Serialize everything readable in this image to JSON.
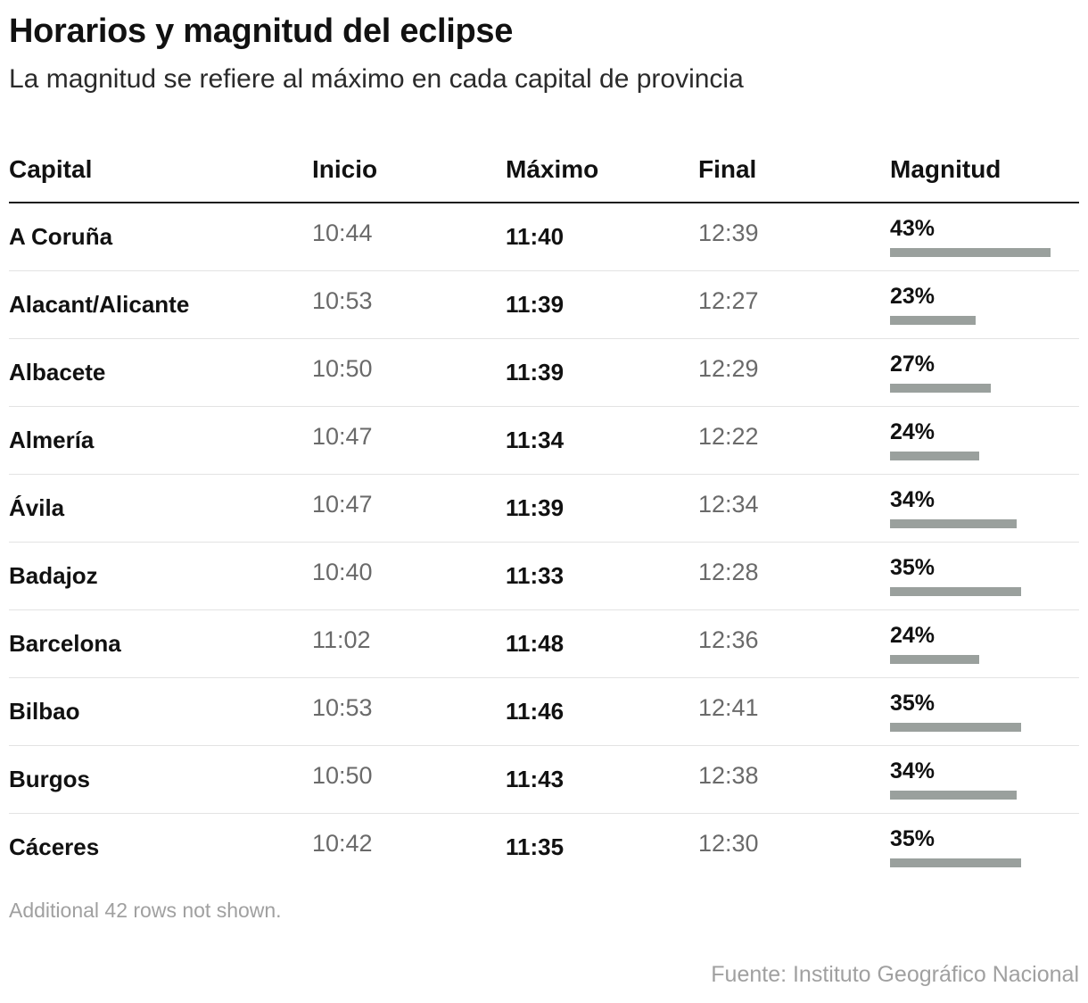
{
  "title": "Horarios y magnitud del eclipse",
  "subtitle": "La magnitud se refiere al máximo en cada capital de provincia",
  "footnote": "Additional 42 rows not shown.",
  "source": "Fuente: Instituto Geográfico Nacional",
  "colors": {
    "bar": "#9aa09d",
    "header_rule": "#1a1a1a",
    "muted_text": "#6a6a6a"
  },
  "chart_data": {
    "type": "table",
    "columns": [
      "Capital",
      "Inicio",
      "Máximo",
      "Final",
      "Magnitud"
    ],
    "magnitude_scale_max_percent": 43,
    "rows": [
      {
        "capital": "A Coruña",
        "inicio": "10:44",
        "maximo": "11:40",
        "final": "12:39",
        "magnitud": "43%",
        "magnitud_value": 43
      },
      {
        "capital": "Alacant/Alicante",
        "inicio": "10:53",
        "maximo": "11:39",
        "final": "12:27",
        "magnitud": "23%",
        "magnitud_value": 23
      },
      {
        "capital": "Albacete",
        "inicio": "10:50",
        "maximo": "11:39",
        "final": "12:29",
        "magnitud": "27%",
        "magnitud_value": 27
      },
      {
        "capital": "Almería",
        "inicio": "10:47",
        "maximo": "11:34",
        "final": "12:22",
        "magnitud": "24%",
        "magnitud_value": 24
      },
      {
        "capital": "Ávila",
        "inicio": "10:47",
        "maximo": "11:39",
        "final": "12:34",
        "magnitud": "34%",
        "magnitud_value": 34
      },
      {
        "capital": "Badajoz",
        "inicio": "10:40",
        "maximo": "11:33",
        "final": "12:28",
        "magnitud": "35%",
        "magnitud_value": 35
      },
      {
        "capital": "Barcelona",
        "inicio": "11:02",
        "maximo": "11:48",
        "final": "12:36",
        "magnitud": "24%",
        "magnitud_value": 24
      },
      {
        "capital": "Bilbao",
        "inicio": "10:53",
        "maximo": "11:46",
        "final": "12:41",
        "magnitud": "35%",
        "magnitud_value": 35
      },
      {
        "capital": "Burgos",
        "inicio": "10:50",
        "maximo": "11:43",
        "final": "12:38",
        "magnitud": "34%",
        "magnitud_value": 34
      },
      {
        "capital": "Cáceres",
        "inicio": "10:42",
        "maximo": "11:35",
        "final": "12:30",
        "magnitud": "35%",
        "magnitud_value": 35
      }
    ]
  }
}
